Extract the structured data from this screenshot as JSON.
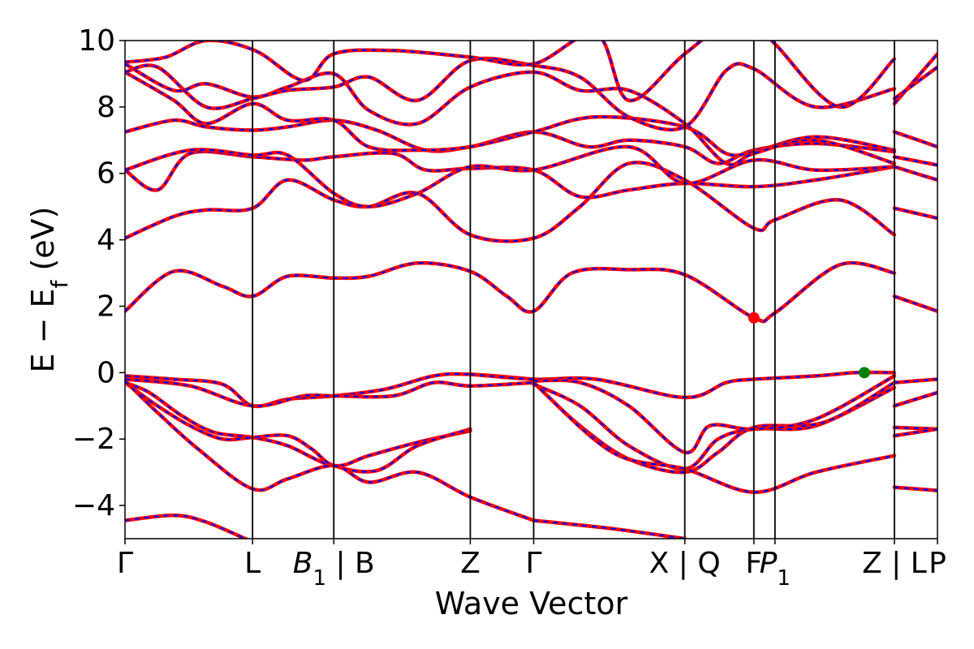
{
  "chart_data": {
    "type": "line",
    "title": "",
    "xlabel": "Wave Vector",
    "ylabel": "E − E",
    "ylabel_sub": "f",
    "ylabel_unit": " (eV)",
    "ylim": [
      -5,
      10
    ],
    "xlim": [
      0,
      1
    ],
    "yticks": [
      {
        "value": -4,
        "label": "−4"
      },
      {
        "value": -2,
        "label": "−2"
      },
      {
        "value": 0,
        "label": "0"
      },
      {
        "value": 2,
        "label": "2"
      },
      {
        "value": 4,
        "label": "4"
      },
      {
        "value": 6,
        "label": "6"
      },
      {
        "value": 8,
        "label": "8"
      },
      {
        "value": 10,
        "label": "10"
      }
    ],
    "kpoints": [
      {
        "pos": 0.0,
        "label": "Γ"
      },
      {
        "pos": 0.157,
        "label": "L"
      },
      {
        "pos": 0.257,
        "label": "B1 | B",
        "main": "B",
        "sub": "1",
        "suffix": " | B"
      },
      {
        "pos": 0.425,
        "label": "Z"
      },
      {
        "pos": 0.503,
        "label": "Γ"
      },
      {
        "pos": 0.689,
        "label": "X | Q"
      },
      {
        "pos": 0.774,
        "label": "F"
      },
      {
        "pos": 0.8,
        "label": "P1",
        "main": "P",
        "sub": "1"
      },
      {
        "pos": 0.947,
        "label": "Z | L"
      },
      {
        "pos": 1.0,
        "label": "P"
      }
    ],
    "series_style": {
      "line_color": "#ff0000",
      "dash_color": "#0000ff"
    },
    "bands": [
      [
        [
          0,
          -4.45
        ],
        [
          0.06,
          -4.3
        ],
        [
          0.1,
          -4.5
        ],
        [
          0.157,
          -5.1
        ]
      ],
      [
        [
          0,
          -0.3
        ],
        [
          0.03,
          -0.6
        ],
        [
          0.07,
          -1.3
        ],
        [
          0.11,
          -1.8
        ],
        [
          0.157,
          -1.95
        ],
        [
          0.2,
          -2.2
        ],
        [
          0.257,
          -2.8
        ],
        [
          0.3,
          -2.5
        ],
        [
          0.36,
          -2.1
        ],
        [
          0.425,
          -1.75
        ]
      ],
      [
        [
          0,
          -0.3
        ],
        [
          0.04,
          -1.0
        ],
        [
          0.08,
          -1.6
        ],
        [
          0.12,
          -2.0
        ],
        [
          0.157,
          -1.95
        ],
        [
          0.2,
          -1.9
        ],
        [
          0.23,
          -2.3
        ],
        [
          0.257,
          -2.8
        ],
        [
          0.31,
          -2.95
        ],
        [
          0.36,
          -2.2
        ],
        [
          0.425,
          -1.7
        ]
      ],
      [
        [
          0,
          -0.25
        ],
        [
          0.04,
          -1.2
        ],
        [
          0.09,
          -2.3
        ],
        [
          0.157,
          -3.5
        ],
        [
          0.2,
          -3.2
        ],
        [
          0.257,
          -2.8
        ],
        [
          0.3,
          -3.3
        ],
        [
          0.36,
          -3.0
        ],
        [
          0.425,
          -3.75
        ],
        [
          0.503,
          -4.45
        ]
      ],
      [
        [
          0,
          -0.1
        ],
        [
          0.06,
          -0.2
        ],
        [
          0.12,
          -0.35
        ],
        [
          0.157,
          -1.0
        ],
        [
          0.2,
          -0.8
        ],
        [
          0.257,
          -0.7
        ],
        [
          0.32,
          -0.5
        ],
        [
          0.38,
          -0.1
        ],
        [
          0.425,
          -0.05
        ],
        [
          0.503,
          -0.2
        ]
      ],
      [
        [
          0,
          -0.2
        ],
        [
          0.08,
          -0.4
        ],
        [
          0.157,
          -1.0
        ],
        [
          0.22,
          -0.7
        ],
        [
          0.257,
          -0.7
        ],
        [
          0.33,
          -0.7
        ],
        [
          0.38,
          -0.3
        ],
        [
          0.425,
          -0.4
        ],
        [
          0.503,
          -0.3
        ]
      ],
      [
        [
          0.425,
          -0.05
        ],
        [
          0.503,
          -0.2
        ],
        [
          0.58,
          -0.2
        ],
        [
          0.689,
          -0.75
        ],
        [
          0.74,
          -0.3
        ],
        [
          0.774,
          -0.2
        ],
        [
          0.85,
          -0.1
        ],
        [
          0.9,
          0.0
        ],
        [
          0.947,
          0.0
        ]
      ],
      [
        [
          0.503,
          -0.35
        ],
        [
          0.56,
          -1.0
        ],
        [
          0.62,
          -2.2
        ],
        [
          0.689,
          -2.9
        ],
        [
          0.73,
          -2.0
        ],
        [
          0.774,
          -1.7
        ],
        [
          0.85,
          -1.6
        ],
        [
          0.947,
          -0.45
        ]
      ],
      [
        [
          0.503,
          -0.3
        ],
        [
          0.56,
          -1.6
        ],
        [
          0.62,
          -2.6
        ],
        [
          0.689,
          -3.0
        ],
        [
          0.73,
          -2.4
        ],
        [
          0.774,
          -1.65
        ],
        [
          0.86,
          -1.5
        ],
        [
          0.947,
          -0.3
        ]
      ],
      [
        [
          0.503,
          -0.25
        ],
        [
          0.56,
          -0.3
        ],
        [
          0.62,
          -1.0
        ],
        [
          0.689,
          -2.4
        ],
        [
          0.72,
          -1.6
        ],
        [
          0.774,
          -1.7
        ],
        [
          0.85,
          -1.4
        ],
        [
          0.947,
          -0.1
        ]
      ],
      [
        [
          0.503,
          -0.3
        ],
        [
          0.6,
          -2.4
        ],
        [
          0.689,
          -2.9
        ],
        [
          0.774,
          -3.6
        ],
        [
          0.85,
          -3.0
        ],
        [
          0.947,
          -2.5
        ]
      ],
      [
        [
          0.503,
          -4.45
        ],
        [
          0.6,
          -4.7
        ],
        [
          0.689,
          -5.0
        ]
      ],
      [
        [
          0,
          1.85
        ],
        [
          0.06,
          3.05
        ],
        [
          0.12,
          2.6
        ],
        [
          0.157,
          2.3
        ],
        [
          0.2,
          2.9
        ],
        [
          0.257,
          2.85
        ],
        [
          0.3,
          2.9
        ],
        [
          0.36,
          3.3
        ],
        [
          0.425,
          3.05
        ],
        [
          0.47,
          2.3
        ],
        [
          0.503,
          1.85
        ],
        [
          0.55,
          3.0
        ],
        [
          0.62,
          3.1
        ],
        [
          0.689,
          2.95
        ],
        [
          0.774,
          1.65
        ],
        [
          0.8,
          1.8
        ],
        [
          0.88,
          3.25
        ],
        [
          0.947,
          3.0
        ]
      ],
      [
        [
          0,
          4.05
        ],
        [
          0.06,
          4.7
        ],
        [
          0.1,
          4.9
        ],
        [
          0.157,
          4.95
        ],
        [
          0.2,
          5.8
        ],
        [
          0.257,
          5.2
        ],
        [
          0.3,
          5.0
        ],
        [
          0.36,
          5.4
        ],
        [
          0.425,
          4.15
        ],
        [
          0.503,
          4.05
        ],
        [
          0.56,
          5.0
        ],
        [
          0.62,
          6.3
        ],
        [
          0.689,
          5.8
        ],
        [
          0.774,
          4.35
        ],
        [
          0.8,
          4.6
        ],
        [
          0.88,
          5.2
        ],
        [
          0.947,
          4.15
        ]
      ],
      [
        [
          0,
          6.1
        ],
        [
          0.04,
          5.5
        ],
        [
          0.08,
          6.6
        ],
        [
          0.157,
          6.5
        ],
        [
          0.22,
          6.4
        ],
        [
          0.257,
          6.5
        ],
        [
          0.33,
          6.6
        ],
        [
          0.37,
          6.1
        ],
        [
          0.425,
          6.15
        ],
        [
          0.503,
          6.1
        ],
        [
          0.56,
          5.3
        ],
        [
          0.62,
          5.5
        ],
        [
          0.689,
          5.7
        ],
        [
          0.774,
          5.6
        ],
        [
          0.85,
          5.8
        ],
        [
          0.947,
          6.2
        ]
      ],
      [
        [
          0,
          6.1
        ],
        [
          0.08,
          6.7
        ],
        [
          0.157,
          6.55
        ],
        [
          0.2,
          6.55
        ],
        [
          0.257,
          5.4
        ],
        [
          0.3,
          5.0
        ],
        [
          0.36,
          5.4
        ],
        [
          0.425,
          6.2
        ],
        [
          0.503,
          6.1
        ],
        [
          0.62,
          6.8
        ],
        [
          0.689,
          5.7
        ],
        [
          0.774,
          6.4
        ],
        [
          0.85,
          6.1
        ],
        [
          0.947,
          6.2
        ]
      ],
      [
        [
          0,
          7.25
        ],
        [
          0.06,
          7.6
        ],
        [
          0.1,
          7.4
        ],
        [
          0.157,
          7.3
        ],
        [
          0.2,
          7.4
        ],
        [
          0.257,
          7.6
        ],
        [
          0.31,
          7.3
        ],
        [
          0.37,
          6.7
        ],
        [
          0.425,
          6.8
        ],
        [
          0.503,
          7.25
        ],
        [
          0.57,
          6.8
        ],
        [
          0.62,
          7.0
        ],
        [
          0.689,
          6.8
        ],
        [
          0.73,
          6.3
        ],
        [
          0.774,
          6.7
        ],
        [
          0.85,
          6.9
        ],
        [
          0.947,
          6.65
        ]
      ],
      [
        [
          0,
          9.05
        ],
        [
          0.06,
          8.2
        ],
        [
          0.1,
          7.5
        ],
        [
          0.157,
          8.1
        ],
        [
          0.2,
          7.6
        ],
        [
          0.257,
          7.6
        ],
        [
          0.3,
          6.8
        ],
        [
          0.36,
          6.7
        ],
        [
          0.425,
          6.8
        ],
        [
          0.503,
          7.25
        ],
        [
          0.58,
          7.7
        ],
        [
          0.689,
          7.4
        ],
        [
          0.74,
          6.6
        ],
        [
          0.774,
          6.65
        ],
        [
          0.85,
          7.1
        ],
        [
          0.947,
          6.7
        ]
      ],
      [
        [
          0,
          9.3
        ],
        [
          0.06,
          8.5
        ],
        [
          0.1,
          8.7
        ],
        [
          0.157,
          8.3
        ],
        [
          0.2,
          8.6
        ],
        [
          0.257,
          9.0
        ],
        [
          0.3,
          7.9
        ],
        [
          0.36,
          7.5
        ],
        [
          0.425,
          8.6
        ],
        [
          0.503,
          9.05
        ],
        [
          0.56,
          8.5
        ],
        [
          0.62,
          8.5
        ],
        [
          0.689,
          7.5
        ],
        [
          0.74,
          6.3
        ],
        [
          0.774,
          6.6
        ],
        [
          0.85,
          7.0
        ],
        [
          0.947,
          6.3
        ]
      ],
      [
        [
          0,
          9.05
        ],
        [
          0.04,
          9.2
        ],
        [
          0.1,
          8.0
        ],
        [
          0.157,
          8.25
        ],
        [
          0.2,
          8.5
        ],
        [
          0.257,
          8.6
        ],
        [
          0.3,
          8.9
        ],
        [
          0.36,
          8.2
        ],
        [
          0.425,
          9.4
        ],
        [
          0.503,
          9.25
        ],
        [
          0.56,
          8.9
        ],
        [
          0.62,
          7.7
        ],
        [
          0.689,
          7.4
        ],
        [
          0.74,
          9.1
        ],
        [
          0.774,
          9.15
        ],
        [
          0.85,
          8.0
        ],
        [
          0.947,
          8.55
        ]
      ],
      [
        [
          0,
          9.35
        ],
        [
          0.05,
          9.5
        ],
        [
          0.1,
          10.0
        ],
        [
          0.16,
          9.7
        ],
        [
          0.22,
          8.8
        ],
        [
          0.257,
          9.6
        ],
        [
          0.33,
          9.7
        ],
        [
          0.425,
          9.5
        ],
        [
          0.503,
          9.3
        ],
        [
          0.58,
          10.2
        ],
        [
          0.62,
          8.2
        ],
        [
          0.689,
          9.6
        ],
        [
          0.76,
          10.8
        ],
        [
          0.8,
          9.9
        ],
        [
          0.88,
          8.0
        ],
        [
          0.947,
          9.45
        ]
      ],
      [
        [
          0.947,
          8.1
        ],
        [
          1.0,
          9.6
        ]
      ],
      [
        [
          0.947,
          8.25
        ],
        [
          1.0,
          9.2
        ]
      ],
      [
        [
          0.947,
          7.25
        ],
        [
          1.0,
          6.8
        ]
      ],
      [
        [
          0.947,
          6.5
        ],
        [
          1.0,
          6.25
        ]
      ],
      [
        [
          0.947,
          6.2
        ],
        [
          1.0,
          5.8
        ]
      ],
      [
        [
          0.947,
          4.95
        ],
        [
          1.0,
          4.65
        ]
      ],
      [
        [
          0.947,
          2.3
        ],
        [
          1.0,
          1.85
        ]
      ],
      [
        [
          0.947,
          -0.3
        ],
        [
          1.0,
          -0.2
        ]
      ],
      [
        [
          0.947,
          -1.0
        ],
        [
          1.0,
          -0.6
        ]
      ],
      [
        [
          0.947,
          -1.65
        ],
        [
          1.0,
          -1.7
        ]
      ],
      [
        [
          0.947,
          -1.9
        ],
        [
          1.0,
          -1.7
        ]
      ],
      [
        [
          0.947,
          -3.45
        ],
        [
          1.0,
          -3.55
        ]
      ]
    ],
    "markers": [
      {
        "pos": 0.774,
        "value": 1.65,
        "color": "#ff0000"
      },
      {
        "pos": 0.91,
        "value": 0.0,
        "color": "#007f00"
      }
    ]
  }
}
